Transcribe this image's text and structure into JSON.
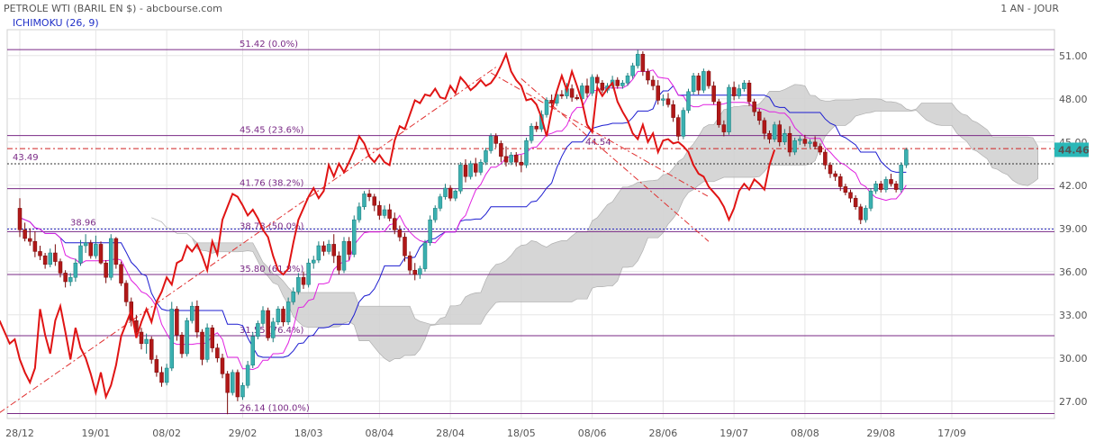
{
  "header": {
    "title": "PETROLE WTI (BARIL EN $) - abcbourse.com",
    "period": "1 AN - JOUR",
    "indicator": "ICHIMOKU (26, 9)"
  },
  "colors": {
    "bull": "#3ab0b0",
    "bear": "#b01818",
    "tenkan": "#e020e0",
    "kijun": "#1c1cd0",
    "chikou": "#e01414",
    "cloud": "#d2d2d2",
    "fib": "#7a2a86",
    "grid": "#e6e6e6"
  },
  "chart_data": {
    "type": "candlestick",
    "ylim": [
      25.8,
      52.8
    ],
    "y_ticks": [
      "51.00",
      "48.00",
      "45.00",
      "42.00",
      "39.00",
      "36.00",
      "33.00",
      "30.00",
      "27.00"
    ],
    "y_tick_values": [
      51,
      48,
      45,
      42,
      39,
      36,
      33,
      30,
      27
    ],
    "x_ticks": [
      "28/12",
      "19/01",
      "08/02",
      "29/02",
      "18/03",
      "08/04",
      "28/04",
      "18/05",
      "08/06",
      "28/06",
      "19/07",
      "08/08",
      "29/08",
      "17/09"
    ],
    "x_tick_index": [
      0,
      15,
      29,
      44,
      57,
      71,
      85,
      99,
      113,
      127,
      141,
      155,
      170,
      184
    ],
    "fibonacci": [
      {
        "label": "51.42  (0.0%)",
        "value": 51.42
      },
      {
        "label": "45.45  (23.6%)",
        "value": 45.45
      },
      {
        "label": "41.76  (38.2%)",
        "value": 41.76
      },
      {
        "label": "38.78  (50.0%)",
        "value": 38.78
      },
      {
        "label": "35.80  (61.8%)",
        "value": 35.8
      },
      {
        "label": "31.55  (76.4%)",
        "value": 31.55
      },
      {
        "label": "26.14  (100.0%)",
        "value": 26.14
      }
    ],
    "hlines": [
      {
        "label": "43.49",
        "value": 43.49,
        "style": "dotted"
      },
      {
        "label": "38.96",
        "value": 38.96,
        "style": "dotted-blue"
      },
      {
        "label": "44.54",
        "value": 44.54,
        "style": "dashdot-red"
      }
    ],
    "last_price": "44.46",
    "last_value": 44.46,
    "trendlines": [
      {
        "from": [
          -4,
          26.2
        ],
        "to": [
          94,
          50.2
        ]
      },
      {
        "from": [
          99,
          49.4
        ],
        "to": [
          136,
          38.1
        ]
      },
      {
        "from": [
          93,
          49.8
        ],
        "to": [
          136,
          41.2
        ]
      }
    ],
    "candles": [
      [
        40.4,
        41.1,
        38.4,
        38.9
      ],
      [
        38.9,
        39.4,
        38.1,
        38.3
      ],
      [
        38.3,
        39.0,
        37.8,
        38.1
      ],
      [
        38.1,
        38.8,
        37.0,
        37.4
      ],
      [
        37.4,
        37.8,
        36.8,
        37.1
      ],
      [
        37.1,
        37.3,
        36.2,
        36.5
      ],
      [
        36.5,
        37.6,
        36.3,
        37.3
      ],
      [
        37.3,
        37.9,
        36.4,
        36.7
      ],
      [
        36.7,
        36.9,
        35.6,
        35.9
      ],
      [
        35.9,
        36.1,
        34.9,
        35.3
      ],
      [
        35.3,
        35.9,
        35.0,
        35.6
      ],
      [
        35.6,
        36.9,
        35.3,
        36.6
      ],
      [
        36.6,
        38.2,
        36.4,
        37.8
      ],
      [
        37.8,
        38.6,
        37.3,
        38.0
      ],
      [
        38.0,
        38.2,
        36.9,
        37.1
      ],
      [
        37.1,
        38.5,
        36.9,
        37.9
      ],
      [
        37.9,
        38.1,
        36.5,
        36.6
      ],
      [
        36.6,
        36.8,
        35.2,
        35.6
      ],
      [
        35.6,
        38.6,
        35.4,
        38.3
      ],
      [
        38.3,
        38.4,
        36.2,
        36.5
      ],
      [
        36.5,
        36.7,
        35.0,
        35.2
      ],
      [
        35.2,
        35.4,
        33.6,
        33.9
      ],
      [
        33.9,
        34.2,
        32.2,
        32.6
      ],
      [
        32.6,
        33.0,
        31.5,
        31.8
      ],
      [
        31.8,
        32.1,
        30.6,
        31.0
      ],
      [
        31.0,
        31.7,
        30.3,
        31.3
      ],
      [
        31.3,
        31.5,
        29.6,
        29.9
      ],
      [
        29.9,
        30.2,
        28.7,
        29.0
      ],
      [
        29.0,
        29.4,
        28.0,
        28.3
      ],
      [
        28.3,
        29.6,
        28.1,
        29.3
      ],
      [
        29.3,
        33.9,
        29.1,
        33.4
      ],
      [
        33.4,
        33.6,
        31.2,
        31.6
      ],
      [
        31.6,
        31.8,
        30.0,
        30.3
      ],
      [
        30.3,
        32.8,
        30.1,
        32.6
      ],
      [
        32.6,
        33.9,
        32.4,
        33.6
      ],
      [
        33.6,
        34.0,
        31.4,
        31.8
      ],
      [
        31.8,
        32.0,
        29.5,
        29.9
      ],
      [
        29.9,
        32.4,
        29.7,
        32.1
      ],
      [
        32.1,
        32.3,
        30.4,
        30.7
      ],
      [
        30.7,
        31.0,
        29.7,
        30.0
      ],
      [
        30.0,
        30.3,
        28.6,
        28.9
      ],
      [
        28.9,
        29.1,
        26.1,
        27.6
      ],
      [
        27.6,
        29.2,
        27.4,
        29.0
      ],
      [
        29.0,
        29.2,
        27.0,
        27.3
      ],
      [
        27.3,
        28.3,
        27.1,
        28.1
      ],
      [
        28.1,
        29.8,
        27.9,
        29.5
      ],
      [
        29.5,
        31.8,
        29.3,
        31.5
      ],
      [
        31.5,
        32.6,
        31.3,
        32.4
      ],
      [
        32.4,
        33.6,
        32.2,
        33.3
      ],
      [
        33.3,
        33.5,
        31.2,
        31.4
      ],
      [
        31.4,
        32.8,
        31.1,
        32.5
      ],
      [
        32.5,
        33.6,
        32.3,
        33.4
      ],
      [
        33.4,
        33.6,
        32.2,
        32.5
      ],
      [
        32.5,
        34.2,
        32.3,
        33.9
      ],
      [
        33.9,
        34.9,
        33.7,
        34.6
      ],
      [
        34.6,
        35.9,
        34.4,
        35.6
      ],
      [
        35.6,
        36.0,
        34.8,
        35.1
      ],
      [
        35.1,
        36.9,
        34.9,
        36.6
      ],
      [
        36.6,
        37.1,
        36.2,
        36.8
      ],
      [
        36.8,
        38.1,
        36.6,
        37.8
      ],
      [
        37.8,
        38.1,
        37.1,
        37.4
      ],
      [
        37.4,
        38.2,
        37.2,
        37.9
      ],
      [
        37.9,
        38.6,
        36.6,
        37.1
      ],
      [
        37.1,
        37.4,
        35.8,
        36.1
      ],
      [
        36.1,
        38.4,
        35.9,
        38.1
      ],
      [
        38.1,
        38.4,
        36.8,
        37.2
      ],
      [
        37.2,
        39.9,
        37.0,
        39.6
      ],
      [
        39.6,
        40.8,
        39.4,
        40.5
      ],
      [
        40.5,
        41.6,
        40.3,
        41.4
      ],
      [
        41.4,
        41.7,
        40.9,
        41.2
      ],
      [
        41.2,
        41.4,
        40.2,
        40.6
      ],
      [
        40.6,
        40.9,
        39.6,
        39.9
      ],
      [
        39.9,
        40.6,
        39.7,
        40.3
      ],
      [
        40.3,
        40.7,
        39.5,
        39.7
      ],
      [
        39.7,
        40.1,
        38.6,
        38.9
      ],
      [
        38.9,
        39.2,
        38.1,
        38.4
      ],
      [
        38.4,
        38.7,
        36.7,
        37.1
      ],
      [
        37.1,
        37.4,
        35.8,
        36.1
      ],
      [
        36.1,
        36.6,
        35.4,
        35.8
      ],
      [
        35.8,
        36.4,
        35.5,
        36.2
      ],
      [
        36.2,
        38.2,
        36.0,
        38.0
      ],
      [
        38.0,
        39.9,
        37.8,
        39.6
      ],
      [
        39.6,
        40.6,
        39.4,
        40.4
      ],
      [
        40.4,
        41.4,
        40.2,
        41.2
      ],
      [
        41.2,
        42.1,
        41.0,
        41.8
      ],
      [
        41.8,
        42.0,
        40.9,
        41.1
      ],
      [
        41.1,
        41.7,
        40.9,
        41.6
      ],
      [
        41.6,
        43.6,
        41.4,
        43.4
      ],
      [
        43.4,
        43.8,
        42.2,
        42.6
      ],
      [
        42.6,
        43.7,
        42.4,
        43.5
      ],
      [
        43.5,
        43.9,
        42.6,
        42.9
      ],
      [
        42.9,
        43.8,
        42.7,
        43.6
      ],
      [
        43.6,
        44.6,
        43.4,
        44.4
      ],
      [
        44.4,
        45.6,
        44.2,
        45.4
      ],
      [
        45.4,
        45.6,
        44.6,
        44.9
      ],
      [
        44.9,
        45.1,
        43.6,
        44.0
      ],
      [
        44.0,
        44.7,
        43.3,
        43.6
      ],
      [
        43.6,
        44.3,
        43.4,
        44.1
      ],
      [
        44.1,
        44.3,
        43.3,
        43.6
      ],
      [
        43.6,
        44.1,
        42.9,
        43.4
      ],
      [
        43.4,
        45.3,
        43.2,
        45.1
      ],
      [
        45.1,
        46.3,
        44.9,
        46.1
      ],
      [
        46.1,
        46.4,
        45.7,
        45.9
      ],
      [
        45.9,
        47.2,
        45.7,
        46.9
      ],
      [
        46.9,
        48.1,
        46.7,
        47.9
      ],
      [
        47.9,
        48.3,
        47.4,
        47.7
      ],
      [
        47.7,
        48.6,
        47.5,
        48.3
      ],
      [
        48.3,
        48.6,
        48.0,
        48.2
      ],
      [
        48.2,
        49.1,
        48.0,
        48.7
      ],
      [
        48.7,
        49.0,
        47.8,
        48.1
      ],
      [
        48.1,
        48.3,
        47.9,
        48.0
      ],
      [
        48.0,
        49.1,
        47.8,
        48.9
      ],
      [
        48.9,
        49.4,
        48.1,
        48.4
      ],
      [
        48.4,
        49.7,
        48.2,
        49.5
      ],
      [
        49.5,
        49.7,
        48.8,
        49.1
      ],
      [
        49.1,
        49.3,
        48.4,
        48.6
      ],
      [
        48.6,
        49.1,
        48.4,
        48.9
      ],
      [
        48.9,
        49.6,
        48.7,
        49.3
      ],
      [
        49.3,
        49.5,
        48.7,
        48.9
      ],
      [
        48.9,
        49.3,
        48.7,
        49.1
      ],
      [
        49.1,
        49.8,
        48.9,
        49.6
      ],
      [
        49.6,
        50.5,
        49.4,
        50.3
      ],
      [
        50.3,
        51.4,
        50.1,
        51.1
      ],
      [
        51.1,
        51.3,
        49.6,
        49.9
      ],
      [
        49.9,
        50.1,
        49.0,
        49.3
      ],
      [
        49.3,
        49.6,
        48.6,
        48.9
      ],
      [
        48.9,
        49.3,
        47.6,
        47.9
      ],
      [
        47.9,
        48.3,
        47.5,
        48.0
      ],
      [
        48.0,
        48.4,
        47.4,
        47.6
      ],
      [
        47.6,
        47.9,
        46.4,
        46.7
      ],
      [
        46.7,
        46.9,
        45.1,
        45.4
      ],
      [
        45.4,
        47.4,
        45.2,
        47.2
      ],
      [
        47.2,
        48.7,
        47.0,
        48.5
      ],
      [
        48.5,
        49.8,
        48.3,
        49.6
      ],
      [
        49.6,
        49.8,
        48.3,
        48.6
      ],
      [
        48.6,
        50.1,
        48.4,
        49.9
      ],
      [
        49.9,
        50.0,
        48.7,
        48.9
      ],
      [
        48.9,
        49.2,
        47.6,
        47.8
      ],
      [
        47.8,
        48.0,
        46.0,
        46.2
      ],
      [
        46.2,
        46.5,
        45.4,
        45.7
      ],
      [
        45.7,
        49.0,
        45.5,
        48.8
      ],
      [
        48.8,
        49.2,
        47.9,
        48.2
      ],
      [
        48.2,
        49.0,
        48.0,
        48.7
      ],
      [
        48.7,
        49.3,
        48.5,
        49.1
      ],
      [
        49.1,
        49.3,
        47.5,
        47.8
      ],
      [
        47.8,
        48.0,
        46.8,
        47.1
      ],
      [
        47.1,
        47.3,
        46.2,
        46.5
      ],
      [
        46.5,
        46.7,
        45.2,
        45.6
      ],
      [
        45.6,
        45.8,
        44.9,
        45.2
      ],
      [
        45.2,
        46.4,
        45.0,
        46.2
      ],
      [
        46.2,
        46.5,
        44.7,
        45.0
      ],
      [
        45.0,
        45.9,
        44.8,
        45.6
      ],
      [
        45.6,
        46.1,
        44.0,
        44.3
      ],
      [
        44.3,
        45.3,
        44.1,
        45.1
      ],
      [
        45.1,
        45.4,
        44.8,
        45.2
      ],
      [
        45.2,
        45.5,
        44.7,
        44.9
      ],
      [
        44.9,
        45.2,
        44.6,
        45.0
      ],
      [
        45.0,
        45.4,
        44.5,
        44.7
      ],
      [
        44.7,
        44.9,
        44.1,
        44.3
      ],
      [
        44.3,
        44.5,
        43.1,
        43.4
      ],
      [
        43.4,
        43.6,
        42.5,
        42.8
      ],
      [
        42.8,
        43.0,
        42.3,
        42.6
      ],
      [
        42.6,
        42.8,
        41.6,
        41.9
      ],
      [
        41.9,
        42.1,
        41.3,
        41.5
      ],
      [
        41.5,
        41.7,
        40.8,
        41.1
      ],
      [
        41.1,
        41.3,
        40.3,
        40.5
      ],
      [
        40.5,
        40.7,
        39.3,
        39.6
      ],
      [
        39.6,
        40.6,
        39.4,
        40.4
      ],
      [
        40.4,
        41.8,
        40.2,
        41.6
      ],
      [
        41.6,
        42.3,
        41.4,
        42.1
      ],
      [
        42.1,
        42.3,
        41.5,
        41.7
      ],
      [
        41.7,
        42.6,
        41.5,
        42.4
      ],
      [
        42.4,
        42.8,
        41.9,
        42.1
      ],
      [
        42.1,
        42.3,
        41.5,
        41.7
      ],
      [
        41.7,
        43.6,
        41.5,
        43.4
      ],
      [
        43.4,
        44.6,
        43.2,
        44.46
      ]
    ]
  }
}
